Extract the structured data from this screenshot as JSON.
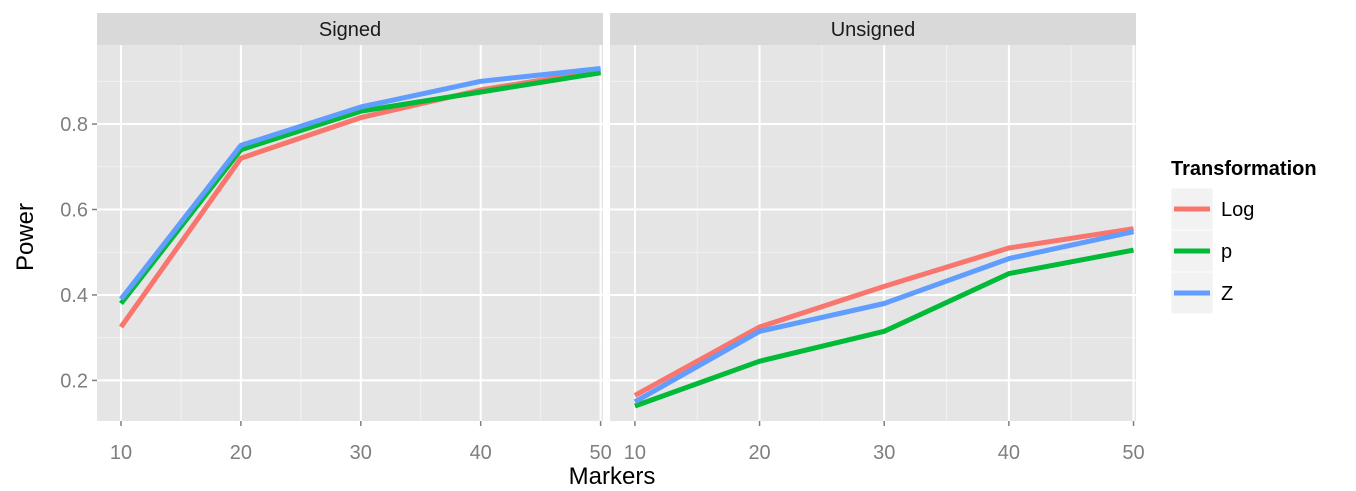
{
  "chart_data": {
    "type": "line",
    "xlabel": "Markers",
    "ylabel": "Power",
    "x": [
      10,
      20,
      30,
      40,
      50
    ],
    "xticks": [
      "10",
      "20",
      "30",
      "40",
      "50"
    ],
    "yticks": [
      "0.2",
      "0.4",
      "0.6",
      "0.8"
    ],
    "ytick_values": [
      0.2,
      0.4,
      0.6,
      0.8
    ],
    "xlim": [
      8,
      50.2
    ],
    "ylim": [
      0.105,
      0.985
    ],
    "grid": true,
    "legend": {
      "title": "Transformation",
      "placement": "right",
      "entries": [
        "Log",
        "p",
        "Z"
      ]
    },
    "colors": {
      "Log": "#F8766D",
      "p": "#00BA38",
      "Z": "#619CFF"
    },
    "panels": [
      {
        "title": "Signed",
        "series": [
          {
            "name": "Log",
            "values": [
              0.325,
              0.72,
              0.815,
              0.88,
              0.925
            ]
          },
          {
            "name": "p",
            "values": [
              0.38,
              0.74,
              0.83,
              0.875,
              0.92
            ]
          },
          {
            "name": "Z",
            "values": [
              0.39,
              0.75,
              0.84,
              0.9,
              0.93
            ]
          }
        ]
      },
      {
        "title": "Unsigned",
        "series": [
          {
            "name": "Log",
            "values": [
              0.165,
              0.325,
              0.42,
              0.51,
              0.555
            ]
          },
          {
            "name": "p",
            "values": [
              0.14,
              0.245,
              0.315,
              0.45,
              0.505
            ]
          },
          {
            "name": "Z",
            "values": [
              0.15,
              0.315,
              0.38,
              0.485,
              0.548
            ]
          }
        ]
      }
    ]
  }
}
